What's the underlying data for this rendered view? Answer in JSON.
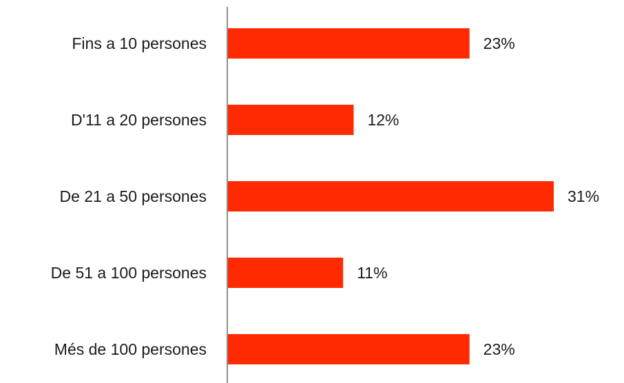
{
  "chart_data": {
    "type": "bar",
    "orientation": "horizontal",
    "categories": [
      "Fins a 10 persones",
      "D'11 a 20 persones",
      "De 21 a 50 persones",
      "De 51 a 100 persones",
      "Més de 100 persones"
    ],
    "values": [
      23,
      12,
      31,
      11,
      23
    ],
    "value_labels": [
      "23%",
      "12%",
      "31%",
      "11%",
      "23%"
    ],
    "unit": "%",
    "xlim": [
      0,
      31
    ],
    "grid": false,
    "legend": "none",
    "colors": {
      "bar": "#ff2a00",
      "axis": "#8c8c8c",
      "text": "#1a1a1a"
    }
  }
}
